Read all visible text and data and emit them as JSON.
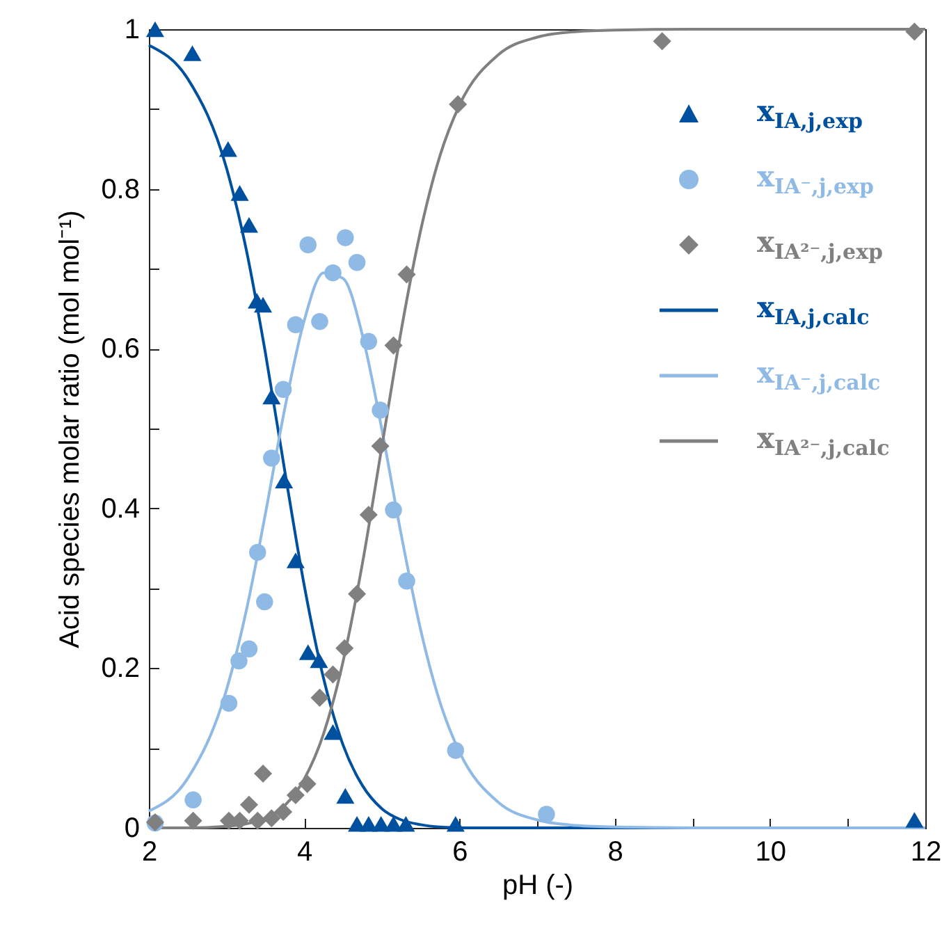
{
  "chart_data": {
    "type": "scatter",
    "xlabel": "pH (-)",
    "ylabel": "Acid species molar ratio (mol mol⁻¹)",
    "xlim": [
      2,
      12
    ],
    "ylim": [
      0,
      1
    ],
    "xticks": [
      2,
      {
        "value": 3,
        "label": null
      },
      4,
      {
        "value": 5,
        "label": null
      },
      6,
      {
        "value": 7,
        "label": null
      },
      8,
      {
        "value": 9,
        "label": null
      },
      10,
      {
        "value": 11,
        "label": null
      },
      12
    ],
    "yticks": [
      0,
      {
        "value": 0.1,
        "label": null
      },
      0.2,
      {
        "value": 0.3,
        "label": null
      },
      0.4,
      {
        "value": 0.5,
        "label": null
      },
      0.6,
      {
        "value": 0.7,
        "label": null
      },
      0.8,
      {
        "value": 0.9,
        "label": null
      },
      1
    ],
    "grid": false,
    "legend": "top right",
    "series": [
      {
        "name": "x$_{IA,j,exp}$",
        "marker": "triangle",
        "color": "#0050a0",
        "x": [
          2.08,
          2.56,
          3.02,
          3.17,
          3.29,
          3.39,
          3.47,
          3.58,
          3.74,
          3.89,
          4.05,
          4.19,
          4.37,
          4.53,
          4.68,
          4.83,
          4.99,
          5.15,
          5.31,
          5.95,
          11.86
        ],
        "values": [
          1.0,
          0.97,
          0.85,
          0.795,
          0.755,
          0.66,
          0.655,
          0.54,
          0.435,
          0.335,
          0.22,
          0.21,
          0.12,
          0.04,
          0.005,
          0.005,
          0.005,
          0.005,
          0.005,
          0.005,
          0.01
        ]
      },
      {
        "name": "x$_{IA⁻,j,exp}$",
        "marker": "circle",
        "color": "#8fbae6",
        "x": [
          2.08,
          2.57,
          3.03,
          3.16,
          3.29,
          3.4,
          3.49,
          3.58,
          3.73,
          3.89,
          4.05,
          4.2,
          4.37,
          4.53,
          4.68,
          4.83,
          4.98,
          5.15,
          5.32,
          5.95,
          7.12
        ],
        "values": [
          0.006,
          0.035,
          0.156,
          0.209,
          0.224,
          0.345,
          0.283,
          0.463,
          0.549,
          0.63,
          0.73,
          0.634,
          0.695,
          0.739,
          0.708,
          0.609,
          0.523,
          0.398,
          0.309,
          0.097,
          0.017
        ]
      },
      {
        "name": "x$_{IA²⁻,j,exp}$",
        "marker": "diamond",
        "color": "#808080",
        "x": [
          2.08,
          2.57,
          3.03,
          3.17,
          3.29,
          3.4,
          3.47,
          3.58,
          3.73,
          3.89,
          4.04,
          4.2,
          4.37,
          4.52,
          4.68,
          4.83,
          4.98,
          5.15,
          5.32,
          5.98,
          8.61,
          11.86
        ],
        "values": [
          0.007,
          0.009,
          0.009,
          0.009,
          0.029,
          0.009,
          0.068,
          0.012,
          0.02,
          0.041,
          0.055,
          0.163,
          0.192,
          0.225,
          0.293,
          0.392,
          0.478,
          0.604,
          0.693,
          0.906,
          0.985,
          0.997
        ]
      },
      {
        "name": "x$_{IA,j,calc}$",
        "type": "line",
        "marker": "none",
        "color": "#0050a0",
        "x": [
          2,
          2.5,
          3,
          3.25,
          3.5,
          3.75,
          4,
          4.25,
          4.5,
          4.75,
          5,
          5.25,
          5.5,
          5.75,
          6,
          6.5,
          7,
          8,
          10,
          12
        ],
        "values": [
          0.98,
          0.938,
          0.826,
          0.726,
          0.595,
          0.447,
          0.304,
          0.187,
          0.104,
          0.053,
          0.024,
          0.01,
          0.004,
          0.001,
          0,
          0,
          0,
          0,
          0,
          0
        ]
      },
      {
        "name": "x$_{IA⁻,j,calc}$",
        "type": "line",
        "marker": "none",
        "color": "#8fbae6",
        "x": [
          2,
          2.5,
          3,
          3.25,
          3.5,
          3.75,
          4,
          4.25,
          4.5,
          4.75,
          5,
          5.25,
          5.5,
          5.75,
          6,
          6.5,
          7,
          7.5,
          8,
          9,
          10,
          12
        ],
        "values": [
          0.021,
          0.062,
          0.173,
          0.27,
          0.393,
          0.525,
          0.635,
          0.695,
          0.688,
          0.617,
          0.499,
          0.367,
          0.248,
          0.157,
          0.095,
          0.032,
          0.01,
          0.003,
          0.001,
          0,
          0,
          0
        ]
      },
      {
        "name": "x$_{IA²⁻,j,calc}$",
        "type": "line",
        "marker": "none",
        "color": "#808080",
        "x": [
          2,
          2.5,
          3,
          3.25,
          3.5,
          3.75,
          4,
          4.25,
          4.5,
          4.75,
          5,
          5.25,
          5.5,
          5.75,
          6,
          6.5,
          7,
          7.5,
          8,
          9,
          10,
          12
        ],
        "values": [
          0,
          0,
          0.002,
          0.005,
          0.012,
          0.028,
          0.061,
          0.118,
          0.208,
          0.331,
          0.477,
          0.623,
          0.748,
          0.842,
          0.905,
          0.968,
          0.99,
          0.997,
          0.999,
          1,
          1,
          1
        ]
      }
    ]
  }
}
